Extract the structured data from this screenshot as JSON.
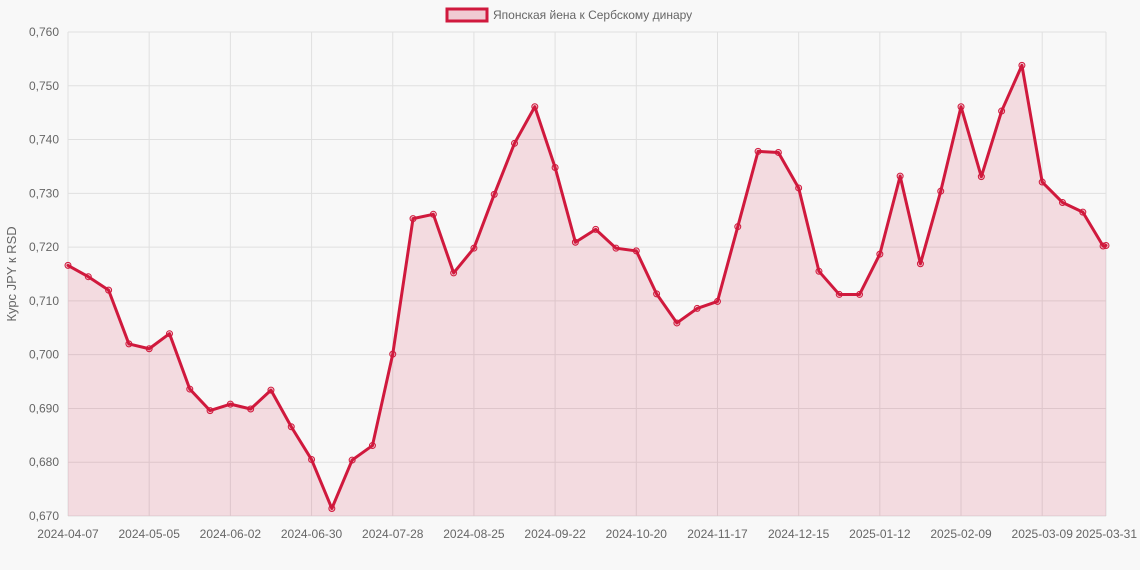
{
  "chart_data": {
    "type": "area",
    "ylabel": "Курс JPY к RSD",
    "ylim": [
      0.67,
      0.76
    ],
    "y_ticks": [
      "0,760",
      "0,750",
      "0,740",
      "0,730",
      "0,720",
      "0,710",
      "0,700",
      "0,690",
      "0,680",
      "0,670"
    ],
    "y_tick_values": [
      0.76,
      0.75,
      0.74,
      0.73,
      0.72,
      0.71,
      0.7,
      0.69,
      0.68,
      0.67
    ],
    "x_tick_labels": [
      "2024-04-07",
      "2024-05-05",
      "2024-06-02",
      "2024-06-30",
      "2024-07-28",
      "2024-08-25",
      "2024-09-22",
      "2024-10-20",
      "2024-11-17",
      "2024-12-15",
      "2025-01-12",
      "2025-02-09",
      "2025-03-09",
      "2025-03-31"
    ],
    "legend_position": "top-center",
    "grid": true,
    "colors": {
      "line": "#d0193d",
      "fill": "rgba(208,25,61,0.13)",
      "grid": "#e0e0e0",
      "background": "#f8f8f8"
    },
    "series": [
      {
        "name": "Японская йена к Сербскому динару",
        "x": [
          "2024-04-07",
          "2024-04-14",
          "2024-04-21",
          "2024-04-28",
          "2024-05-05",
          "2024-05-12",
          "2024-05-19",
          "2024-05-26",
          "2024-06-02",
          "2024-06-09",
          "2024-06-16",
          "2024-06-23",
          "2024-06-30",
          "2024-07-07",
          "2024-07-14",
          "2024-07-21",
          "2024-07-28",
          "2024-08-04",
          "2024-08-11",
          "2024-08-18",
          "2024-08-25",
          "2024-09-01",
          "2024-09-08",
          "2024-09-15",
          "2024-09-22",
          "2024-09-29",
          "2024-10-06",
          "2024-10-13",
          "2024-10-20",
          "2024-10-27",
          "2024-11-03",
          "2024-11-10",
          "2024-11-17",
          "2024-11-24",
          "2024-12-01",
          "2024-12-08",
          "2024-12-15",
          "2024-12-22",
          "2024-12-29",
          "2025-01-05",
          "2025-01-12",
          "2025-01-19",
          "2025-01-26",
          "2025-02-02",
          "2025-02-09",
          "2025-02-16",
          "2025-02-23",
          "2025-03-02",
          "2025-03-09",
          "2025-03-16",
          "2025-03-23",
          "2025-03-30",
          "2025-03-31"
        ],
        "values": [
          0.7166,
          0.7145,
          0.712,
          0.702,
          0.7011,
          0.7039,
          0.6936,
          0.6896,
          0.6908,
          0.6899,
          0.6934,
          0.6866,
          0.6805,
          0.6714,
          0.6804,
          0.6831,
          0.7001,
          0.7253,
          0.7261,
          0.7152,
          0.7198,
          0.7298,
          0.7393,
          0.7461,
          0.7348,
          0.7209,
          0.7233,
          0.7198,
          0.7193,
          0.7113,
          0.7059,
          0.7086,
          0.7099,
          0.7238,
          0.7378,
          0.7376,
          0.731,
          0.7155,
          0.7112,
          0.7112,
          0.7187,
          0.7332,
          0.7169,
          0.7304,
          0.7461,
          0.7331,
          0.7453,
          0.7538,
          0.7321,
          0.7283,
          0.7265,
          0.7202,
          0.7203
        ]
      }
    ]
  }
}
